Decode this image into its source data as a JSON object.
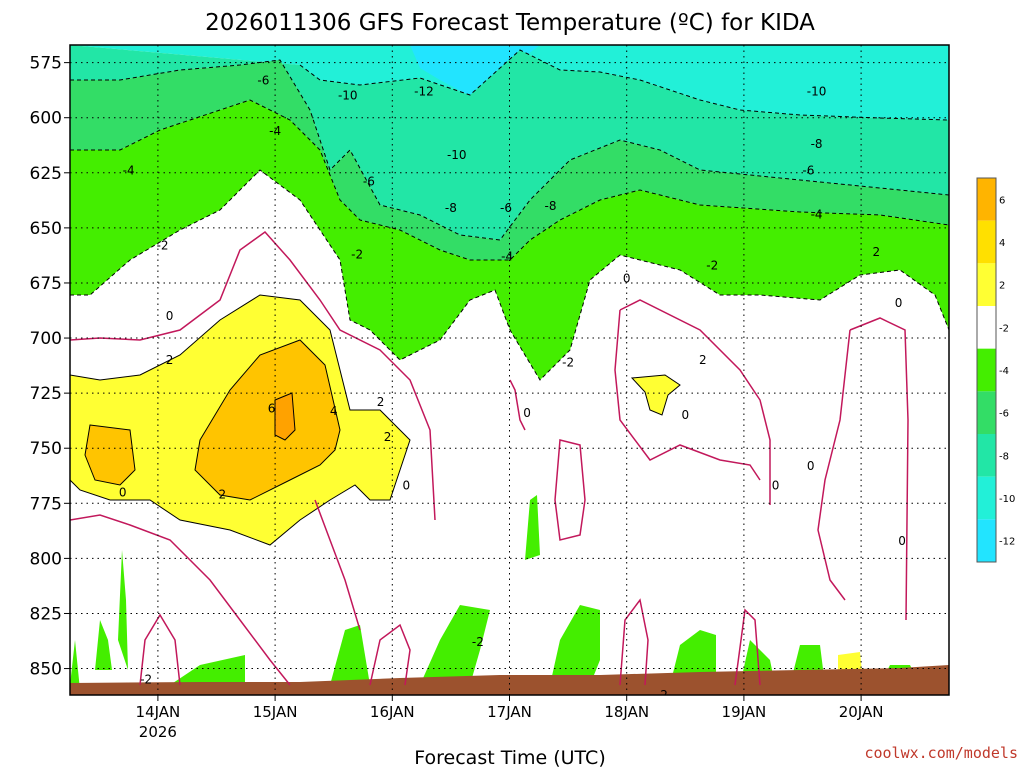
{
  "chart_data": {
    "type": "contour",
    "title": "2026011306 GFS Forecast Temperature (ºC) for KIDA",
    "xlabel": "Forecast Time (UTC)",
    "ylabel": "",
    "y_axis": {
      "ticks": [
        575,
        600,
        625,
        650,
        675,
        700,
        725,
        750,
        775,
        800,
        825,
        850
      ],
      "ylim": [
        862,
        567
      ],
      "inverted": true
    },
    "x_axis": {
      "ticks": [
        {
          "label": "14JAN",
          "sublabel": "2026"
        },
        {
          "label": "15JAN",
          "sublabel": ""
        },
        {
          "label": "16JAN",
          "sublabel": ""
        },
        {
          "label": "17JAN",
          "sublabel": ""
        },
        {
          "label": "18JAN",
          "sublabel": ""
        },
        {
          "label": "19JAN",
          "sublabel": ""
        },
        {
          "label": "20JAN",
          "sublabel": ""
        }
      ],
      "tick_values": [
        14,
        15,
        16,
        17,
        18,
        19,
        20
      ],
      "xlim": [
        13.25,
        20.75
      ]
    },
    "grid": true,
    "colorbar": {
      "labels": [
        "6",
        "4",
        "2",
        "-2",
        "-4",
        "-6",
        "-8",
        "-10",
        "-12"
      ],
      "colors": [
        "#ffb400",
        "#ffe000",
        "#ffff33",
        "#ffffff",
        "#44ee00",
        "#33dd66",
        "#22e6a6",
        "#22f0d8",
        "#22e4ff"
      ]
    },
    "contour_labels": [
      {
        "text": "-6",
        "t": 14.9,
        "p": 583
      },
      {
        "text": "-10",
        "t": 15.62,
        "p": 590
      },
      {
        "text": "-12",
        "t": 16.27,
        "p": 588
      },
      {
        "text": "-10",
        "t": 19.62,
        "p": 588
      },
      {
        "text": "-4",
        "t": 15.0,
        "p": 606
      },
      {
        "text": "-8",
        "t": 19.62,
        "p": 612
      },
      {
        "text": "-10",
        "t": 16.55,
        "p": 617
      },
      {
        "text": "-4",
        "t": 13.75,
        "p": 624
      },
      {
        "text": "-6",
        "t": 15.8,
        "p": 629
      },
      {
        "text": "-6",
        "t": 19.55,
        "p": 624
      },
      {
        "text": "-8",
        "t": 16.5,
        "p": 641
      },
      {
        "text": "-6",
        "t": 16.97,
        "p": 641
      },
      {
        "text": "-8",
        "t": 17.35,
        "p": 640
      },
      {
        "text": "-4",
        "t": 19.62,
        "p": 644
      },
      {
        "text": "-2",
        "t": 14.04,
        "p": 658
      },
      {
        "text": "-2",
        "t": 15.7,
        "p": 662
      },
      {
        "text": "-4",
        "t": 16.98,
        "p": 663
      },
      {
        "text": "2",
        "t": 20.13,
        "p": 661
      },
      {
        "text": "-2",
        "t": 18.73,
        "p": 667
      },
      {
        "text": "0",
        "t": 18.0,
        "p": 673
      },
      {
        "text": "0",
        "t": 14.1,
        "p": 690
      },
      {
        "text": "0",
        "t": 20.32,
        "p": 684
      },
      {
        "text": "2",
        "t": 14.1,
        "p": 710
      },
      {
        "text": "-2",
        "t": 17.5,
        "p": 711
      },
      {
        "text": "2",
        "t": 18.65,
        "p": 710
      },
      {
        "text": "2",
        "t": 15.9,
        "p": 729
      },
      {
        "text": "6",
        "t": 14.97,
        "p": 732
      },
      {
        "text": "4",
        "t": 15.5,
        "p": 733
      },
      {
        "text": "0",
        "t": 17.15,
        "p": 734
      },
      {
        "text": "0",
        "t": 18.5,
        "p": 735
      },
      {
        "text": "2",
        "t": 15.96,
        "p": 745
      },
      {
        "text": "0",
        "t": 19.57,
        "p": 758
      },
      {
        "text": "0",
        "t": 13.7,
        "p": 770
      },
      {
        "text": "2",
        "t": 14.55,
        "p": 771
      },
      {
        "text": "0",
        "t": 16.12,
        "p": 767
      },
      {
        "text": "0",
        "t": 19.27,
        "p": 767
      },
      {
        "text": "0",
        "t": 20.35,
        "p": 792
      },
      {
        "text": "-2",
        "t": 16.73,
        "p": 838
      },
      {
        "text": "-2",
        "t": 13.9,
        "p": 855
      },
      {
        "text": "-2",
        "t": 18.3,
        "p": 862
      }
    ]
  },
  "credit": "coolwx.com/models"
}
